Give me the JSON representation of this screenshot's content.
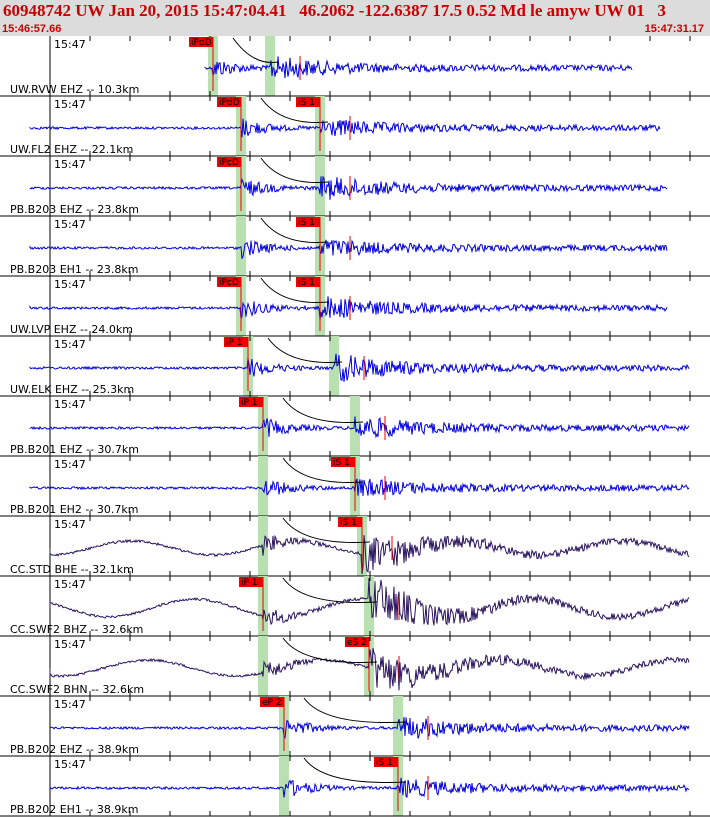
{
  "header": {
    "title": "60948742 UW Jan 20, 2015 15:47:04.41   46.2062 -122.6387 17.5 0.52 Md le amyw UW 01   3",
    "start_time": "15:46:57.66",
    "end_time": "15:47:31.17"
  },
  "colors": {
    "header_bg": "#dcdcdc",
    "header_text": "#cc0000",
    "trace_blue": "#0000dd",
    "trace_dark": "#2a1460",
    "pick_box": "#ee0000",
    "window_green": "#b8e0b0",
    "curve": "#000000"
  },
  "minute_label": "15:47",
  "traces": [
    {
      "label": "UW.RVW EHZ -- 10.3km",
      "amp": 0.2,
      "style": "blue",
      "p_pick": "iPdD",
      "p_frac": 0.3,
      "s_pick": "",
      "s_frac": 0.38,
      "end_frac": 0.89
    },
    {
      "label": "UW.FL2 EHZ -- 22.1km",
      "amp": 0.15,
      "style": "blue",
      "p_pick": "iPdD",
      "p_frac": 0.34,
      "s_pick": "iS 1",
      "s_frac": 0.45,
      "end_frac": 0.93
    },
    {
      "label": "PB.B203 EHZ -- 23.8km",
      "amp": 0.2,
      "style": "blue",
      "p_pick": "iPcD",
      "p_frac": 0.34,
      "s_pick": "",
      "s_frac": 0.45,
      "end_frac": 0.94
    },
    {
      "label": "PB.B203 EH1 -- 23.8km",
      "amp": 0.15,
      "style": "blue",
      "p_pick": "",
      "p_frac": 0.34,
      "s_pick": "iS 1",
      "s_frac": 0.45,
      "end_frac": 0.94
    },
    {
      "label": "UW.LVP EHZ -- 24.0km",
      "amp": 0.2,
      "style": "blue",
      "p_pick": "iPcD",
      "p_frac": 0.34,
      "s_pick": "iS 1",
      "s_frac": 0.45,
      "end_frac": 0.94
    },
    {
      "label": "UW.ELK EHZ -- 25.3km",
      "amp": 0.25,
      "style": "blue",
      "p_pick": "iP 1",
      "p_frac": 0.35,
      "s_pick": "",
      "s_frac": 0.47,
      "end_frac": 0.97
    },
    {
      "label": "PB.B201 EHZ -- 30.7km",
      "amp": 0.2,
      "style": "blue",
      "p_pick": "iP 1",
      "p_frac": 0.37,
      "s_pick": "",
      "s_frac": 0.5,
      "end_frac": 0.97
    },
    {
      "label": "PB.B201 EH2 -- 30.7km",
      "amp": 0.15,
      "style": "blue",
      "p_pick": "",
      "p_frac": 0.37,
      "s_pick": "iS 1",
      "s_frac": 0.5,
      "end_frac": 0.97
    },
    {
      "label": "CC.STD BHE -- 32.1km",
      "amp": 0.35,
      "style": "dark",
      "p_pick": "",
      "p_frac": 0.37,
      "s_pick": "iS 1",
      "s_frac": 0.51,
      "end_frac": 0.97
    },
    {
      "label": "CC.SWF2 BHZ -- 32.6km",
      "amp": 0.45,
      "style": "dark",
      "p_pick": "iP 1",
      "p_frac": 0.37,
      "s_pick": "",
      "s_frac": 0.52,
      "end_frac": 0.97
    },
    {
      "label": "CC.SWF2 BHN -- 32.6km",
      "amp": 0.4,
      "style": "dark",
      "p_pick": "",
      "p_frac": 0.37,
      "s_pick": "eS 2",
      "s_frac": 0.52,
      "end_frac": 0.97
    },
    {
      "label": "PB.B202 EHZ -- 38.9km",
      "amp": 0.2,
      "style": "blue",
      "p_pick": "eP 2",
      "p_frac": 0.4,
      "s_pick": "",
      "s_frac": 0.56,
      "end_frac": 0.97
    },
    {
      "label": "PB.B202 EH1 -- 38.9km",
      "amp": 0.15,
      "style": "blue",
      "p_pick": "",
      "p_frac": 0.4,
      "s_pick": "iS 1",
      "s_frac": 0.56,
      "end_frac": 0.97
    }
  ]
}
